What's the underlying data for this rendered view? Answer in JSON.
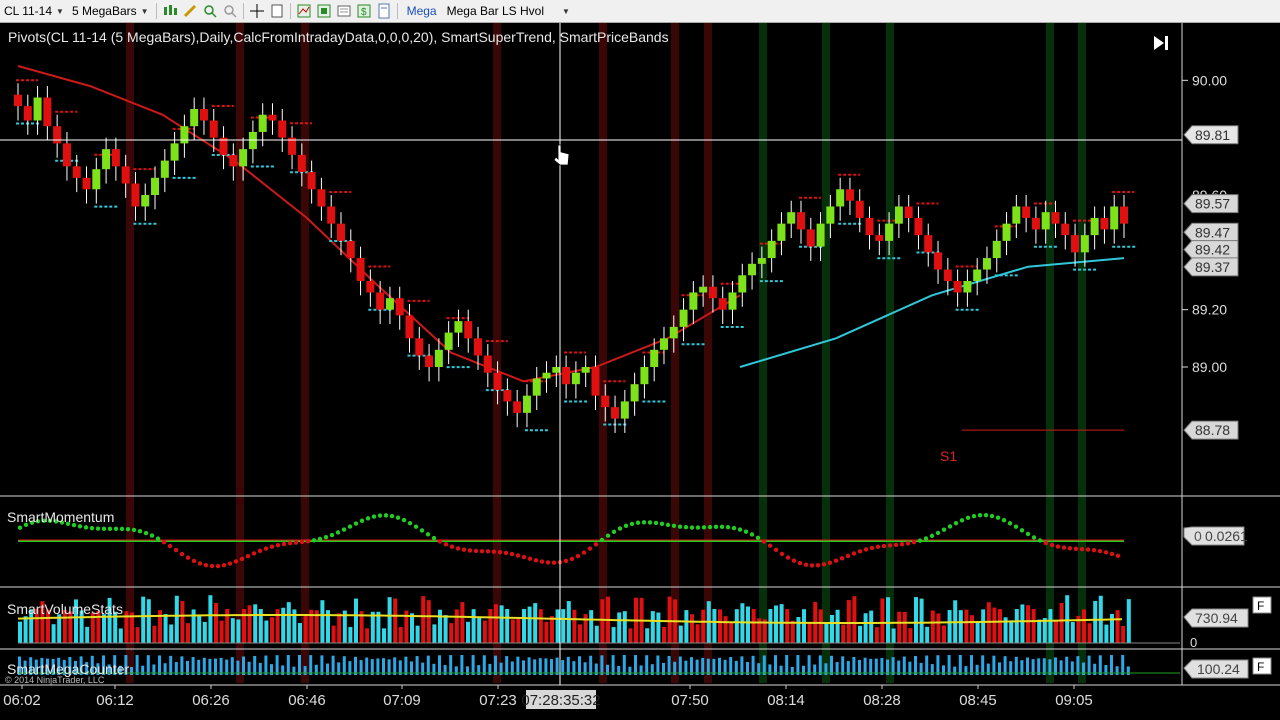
{
  "toolbar": {
    "instrument": "CL 11-14",
    "bar_type": "5 MegaBars",
    "mega_button": "Mega",
    "template": "Mega Bar LS Hvol"
  },
  "chart_title": "Pivots(CL 11-14 (5 MegaBars),Daily,CalcFromIntradayData,0,0,0,20), SmartSuperTrend, SmartPriceBands",
  "panels": {
    "momentum": "SmartMomentum",
    "volume": "SmartVolumeStats",
    "mega": "SmartMegaCounter"
  },
  "price_axis": {
    "ticks": [
      "90.00",
      "89.20",
      "89.00"
    ],
    "partial_tick": "89.60",
    "labels": [
      "89.81",
      "89.57",
      "89.47",
      "89.42",
      "89.37",
      "88.78"
    ],
    "ymin": 88.55,
    "ymax": 90.2
  },
  "pivot_label": "S1",
  "momentum_readout": "0.0261",
  "momentum_zero": "0",
  "volume_readout": "730.94",
  "volume_zero": "0",
  "mega_readout": "100.24",
  "panel_flag": "F",
  "copyright": "© 2014 NinjaTrader, LLC",
  "time_axis": {
    "labels": [
      "06:02",
      "06:12",
      "06:26",
      "06:46",
      "07:09",
      "07:23",
      "07:50",
      "08:14",
      "08:28",
      "08:45",
      "09:05"
    ],
    "cursor_time": "07:28:35:32"
  },
  "colors": {
    "bull": "#7ee21a",
    "bear": "#e01010",
    "supertrend": "#cc1a1a",
    "price_band": "#30c8d8",
    "vol_up": "#30d8e8",
    "vol_down": "#e01010",
    "mom_up": "#22cc22",
    "mom_down": "#dd1111"
  },
  "chart_data": {
    "type": "candlestick",
    "closes": [
      89.91,
      89.86,
      89.94,
      89.84,
      89.78,
      89.7,
      89.66,
      89.62,
      89.69,
      89.76,
      89.7,
      89.64,
      89.56,
      89.6,
      89.66,
      89.72,
      89.78,
      89.84,
      89.9,
      89.86,
      89.8,
      89.74,
      89.7,
      89.76,
      89.82,
      89.88,
      89.86,
      89.8,
      89.74,
      89.68,
      89.62,
      89.56,
      89.5,
      89.44,
      89.38,
      89.3,
      89.26,
      89.2,
      89.24,
      89.18,
      89.1,
      89.04,
      89.0,
      89.06,
      89.12,
      89.16,
      89.1,
      89.04,
      88.98,
      88.92,
      88.88,
      88.84,
      88.9,
      88.96,
      88.98,
      89.0,
      88.94,
      88.98,
      89.0,
      88.9,
      88.86,
      88.82,
      88.88,
      88.94,
      89.0,
      89.06,
      89.1,
      89.14,
      89.2,
      89.26,
      89.28,
      89.24,
      89.2,
      89.26,
      89.32,
      89.36,
      89.38,
      89.44,
      89.5,
      89.54,
      89.48,
      89.42,
      89.5,
      89.56,
      89.62,
      89.58,
      89.52,
      89.46,
      89.44,
      89.5,
      89.56,
      89.52,
      89.46,
      89.4,
      89.34,
      89.3,
      89.26,
      89.3,
      89.34,
      89.38,
      89.44,
      89.5,
      89.56,
      89.52,
      89.48,
      89.54,
      89.5,
      89.46,
      89.4,
      89.46,
      89.52,
      89.48,
      89.56,
      89.5
    ],
    "supertrend": [
      90.05,
      89.98,
      89.88,
      89.72,
      89.52,
      89.28,
      89.05,
      88.95,
      89.0,
      89.1,
      89.25
    ],
    "price_band": [
      89.0,
      89.1,
      89.25,
      89.35,
      89.38
    ],
    "pivot_s1": 88.78
  }
}
